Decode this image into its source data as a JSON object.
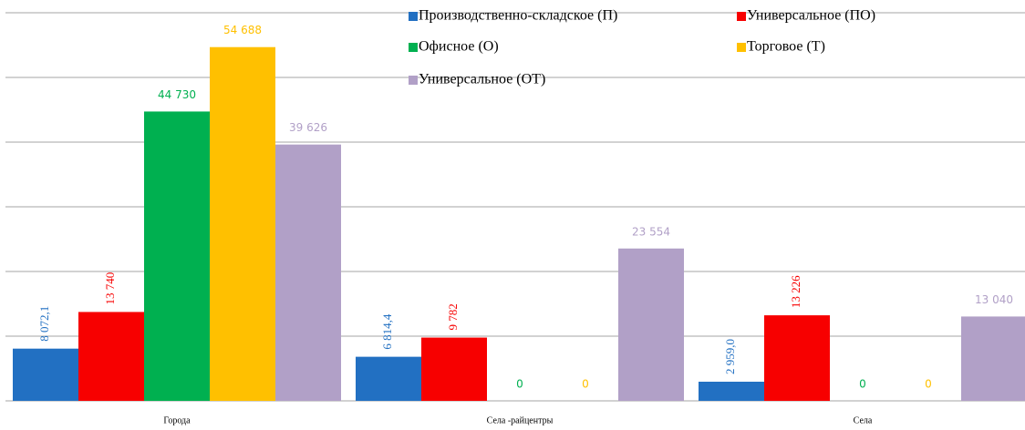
{
  "chart_data": {
    "type": "bar",
    "categories": [
      "Города",
      "Села -райцентры",
      "Села"
    ],
    "series": [
      {
        "name": "Производственно-складское (П)",
        "color": "#2270c2",
        "values": [
          8072.1,
          6814.4,
          2959.0
        ],
        "value_labels": [
          "8 072,1",
          "6 814,4",
          "2 959,0"
        ]
      },
      {
        "name": "Универсальное (ПО)",
        "color": "#f70000",
        "values": [
          13740,
          9782,
          13226
        ],
        "value_labels": [
          "13 740",
          "9 782",
          "13 226"
        ]
      },
      {
        "name": "Офисное (О)",
        "color": "#00b050",
        "values": [
          44730,
          0,
          0
        ],
        "value_labels": [
          "44 730",
          "0",
          "0"
        ]
      },
      {
        "name": "Торговое (Т)",
        "color": "#ffc000",
        "values": [
          54688,
          0,
          0
        ],
        "value_labels": [
          "54 688",
          "0",
          "0"
        ]
      },
      {
        "name": "Универсальное (ОТ)",
        "color": "#b1a0c7",
        "values": [
          39626,
          23554,
          13040
        ],
        "value_labels": [
          "39 626",
          "23 554",
          "13 040"
        ]
      }
    ],
    "ylim": [
      0,
      60000
    ],
    "yticks": [
      0,
      10000,
      20000,
      30000,
      40000,
      50000,
      60000
    ],
    "grid": true
  }
}
